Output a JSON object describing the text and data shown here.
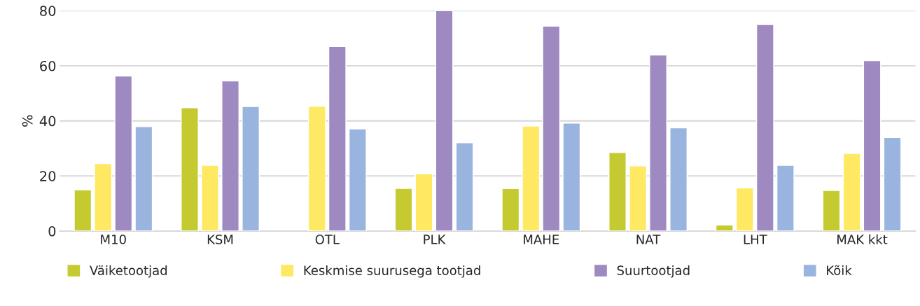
{
  "chart_data": {
    "type": "bar",
    "ylabel": "%",
    "categories": [
      "M10",
      "KSM",
      "OTL",
      "PLK",
      "MAHE",
      "NAT",
      "LHT",
      "MAK kkt"
    ],
    "series": [
      {
        "name": "Väiketootjad",
        "color": "#c5ca30",
        "values": [
          15.0,
          44.8,
          null,
          15.5,
          15.4,
          28.5,
          2.2,
          14.7
        ]
      },
      {
        "name": "Keskmise suurusega tootjad",
        "color": "#ffe862",
        "values": [
          24.5,
          23.9,
          45.3,
          20.8,
          38.1,
          23.7,
          15.7,
          28.2
        ]
      },
      {
        "name": "Suurtootjad",
        "color": "#9e8ac0",
        "values": [
          56.3,
          54.5,
          67.0,
          80.0,
          74.4,
          63.9,
          75.0,
          61.9
        ]
      },
      {
        "name": "Kõik",
        "color": "#99b4de",
        "values": [
          37.9,
          45.2,
          37.1,
          32.1,
          39.2,
          37.5,
          23.9,
          34.0
        ]
      }
    ],
    "ylim": [
      0,
      80
    ],
    "yticks": [
      0,
      20,
      40,
      60,
      80
    ],
    "grid": "y",
    "legend": "bottom"
  }
}
